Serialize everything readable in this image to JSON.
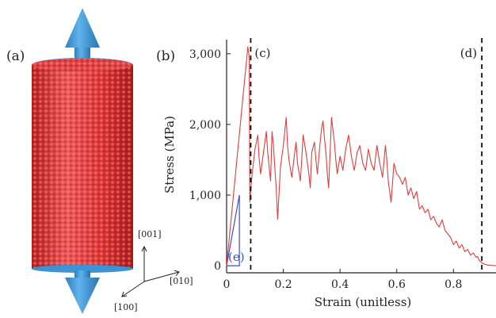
{
  "panels": {
    "a": "(a)",
    "b": "(b)"
  },
  "crystal_axes": {
    "z": "[001]",
    "y": "[010]",
    "x": "[100]"
  },
  "colors": {
    "cylinder": "#e03a3a",
    "arrow": "#3a95d6",
    "stress_line": "#e43b3b",
    "slope_triangle": "#3b4fd1"
  },
  "chart_data": {
    "type": "line",
    "xlabel": "Strain (unitless)",
    "ylabel": "Stress (MPa)",
    "xlim": [
      0,
      0.95
    ],
    "ylim": [
      -100,
      3200
    ],
    "x_ticks": [
      0,
      0.2,
      0.4,
      0.6,
      0.8
    ],
    "x_tick_labels": [
      "0",
      "0.2",
      "0.4",
      "0.6",
      "0.8"
    ],
    "y_ticks": [
      0,
      1000,
      2000,
      3000
    ],
    "y_tick_labels": [
      "0",
      "1,000",
      "2,000",
      "3,000"
    ],
    "grid": false,
    "legend": "none",
    "series": [
      {
        "points": [
          [
            0.0,
            0.0
          ],
          [
            0.075,
            3100
          ],
          [
            0.08,
            2950
          ],
          [
            0.082,
            900
          ],
          [
            0.09,
            1300
          ],
          [
            0.1,
            1650
          ],
          [
            0.11,
            1850
          ],
          [
            0.115,
            1500
          ],
          [
            0.12,
            1300
          ],
          [
            0.13,
            1600
          ],
          [
            0.14,
            1900
          ],
          [
            0.145,
            1600
          ],
          [
            0.15,
            1400
          ],
          [
            0.155,
            1200
          ],
          [
            0.16,
            1900
          ],
          [
            0.165,
            1700
          ],
          [
            0.17,
            1400
          ],
          [
            0.175,
            1100
          ],
          [
            0.18,
            660
          ],
          [
            0.19,
            1400
          ],
          [
            0.2,
            1700
          ],
          [
            0.21,
            2100
          ],
          [
            0.215,
            1700
          ],
          [
            0.22,
            1500
          ],
          [
            0.23,
            1250
          ],
          [
            0.24,
            1600
          ],
          [
            0.245,
            1750
          ],
          [
            0.25,
            1450
          ],
          [
            0.26,
            1200
          ],
          [
            0.265,
            1500
          ],
          [
            0.27,
            1850
          ],
          [
            0.28,
            1600
          ],
          [
            0.29,
            1300
          ],
          [
            0.295,
            1100
          ],
          [
            0.3,
            1600
          ],
          [
            0.31,
            1750
          ],
          [
            0.315,
            1500
          ],
          [
            0.32,
            1300
          ],
          [
            0.33,
            1750
          ],
          [
            0.335,
            1950
          ],
          [
            0.34,
            2050
          ],
          [
            0.345,
            1800
          ],
          [
            0.35,
            1600
          ],
          [
            0.355,
            1300
          ],
          [
            0.36,
            1100
          ],
          [
            0.365,
            1600
          ],
          [
            0.37,
            2100
          ],
          [
            0.38,
            1750
          ],
          [
            0.385,
            1500
          ],
          [
            0.39,
            1300
          ],
          [
            0.4,
            1550
          ],
          [
            0.41,
            1350
          ],
          [
            0.42,
            1650
          ],
          [
            0.43,
            1850
          ],
          [
            0.44,
            1550
          ],
          [
            0.45,
            1350
          ],
          [
            0.46,
            1600
          ],
          [
            0.47,
            1700
          ],
          [
            0.48,
            1450
          ],
          [
            0.49,
            1350
          ],
          [
            0.5,
            1650
          ],
          [
            0.51,
            1450
          ],
          [
            0.52,
            1350
          ],
          [
            0.53,
            1700
          ],
          [
            0.54,
            1450
          ],
          [
            0.55,
            1250
          ],
          [
            0.56,
            1700
          ],
          [
            0.565,
            1500
          ],
          [
            0.57,
            1200
          ],
          [
            0.58,
            900
          ],
          [
            0.59,
            1450
          ],
          [
            0.6,
            1300
          ],
          [
            0.61,
            1250
          ],
          [
            0.62,
            1150
          ],
          [
            0.63,
            1250
          ],
          [
            0.64,
            1000
          ],
          [
            0.65,
            1100
          ],
          [
            0.66,
            950
          ],
          [
            0.67,
            1050
          ],
          [
            0.68,
            800
          ],
          [
            0.69,
            850
          ],
          [
            0.7,
            750
          ],
          [
            0.71,
            800
          ],
          [
            0.72,
            650
          ],
          [
            0.73,
            700
          ],
          [
            0.74,
            600
          ],
          [
            0.75,
            550
          ],
          [
            0.76,
            650
          ],
          [
            0.77,
            500
          ],
          [
            0.78,
            450
          ],
          [
            0.79,
            400
          ],
          [
            0.8,
            300
          ],
          [
            0.81,
            350
          ],
          [
            0.82,
            250
          ],
          [
            0.83,
            300
          ],
          [
            0.84,
            200
          ],
          [
            0.85,
            230
          ],
          [
            0.86,
            150
          ],
          [
            0.87,
            180
          ],
          [
            0.88,
            120
          ],
          [
            0.885,
            130
          ],
          [
            0.89,
            80
          ],
          [
            0.895,
            60
          ],
          [
            0.9,
            40
          ],
          [
            0.91,
            20
          ],
          [
            0.92,
            10
          ],
          [
            0.93,
            5
          ],
          [
            0.95,
            0
          ]
        ]
      }
    ],
    "markers": [
      {
        "label": "(c)",
        "x": 0.085
      },
      {
        "label": "(d)",
        "x": 0.9
      }
    ],
    "annotations": [
      {
        "label": "(e)",
        "triangle": [
          [
            0.0,
            0
          ],
          [
            0.045,
            0
          ],
          [
            0.045,
            1000
          ]
        ]
      }
    ]
  }
}
